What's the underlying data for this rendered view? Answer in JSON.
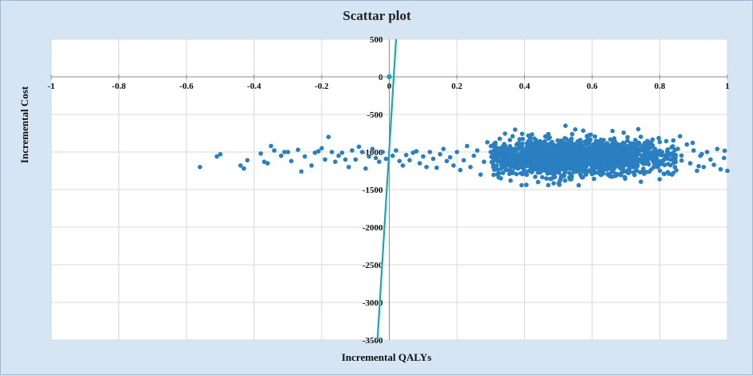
{
  "chart_data": {
    "type": "scatter",
    "title": "Scattar plot",
    "xlabel": "Incremental QALYs",
    "ylabel": "Incremental Cost",
    "xlim": [
      -1,
      1
    ],
    "ylim": [
      -3500,
      500
    ],
    "x_ticks": [
      "-1",
      "-0.8",
      "-0.6",
      "-0.4",
      "-0.2",
      "0",
      "0.2",
      "0.4",
      "0.6",
      "0.8",
      "1"
    ],
    "y_ticks": [
      "500",
      "0",
      "-500",
      "-1000",
      "-1500",
      "-2000",
      "-2500",
      "-3000",
      "-3500"
    ],
    "grid": true,
    "legend": "none",
    "colors": {
      "points": "#2a7fc1",
      "threshold_line": "#1aa7b2",
      "background": "#d6e5f3",
      "plot_area": "#ffffff"
    },
    "series": [
      {
        "type": "scatter",
        "points": [
          [
            -0.56,
            -1200
          ],
          [
            -0.51,
            -1060
          ],
          [
            -0.5,
            -1030
          ],
          [
            -0.44,
            -1180
          ],
          [
            -0.43,
            -1220
          ],
          [
            -0.42,
            -1110
          ],
          [
            -0.38,
            -1020
          ],
          [
            -0.37,
            -1130
          ],
          [
            -0.36,
            -1150
          ],
          [
            -0.35,
            -920
          ],
          [
            -0.34,
            -980
          ],
          [
            -0.32,
            -1050
          ],
          [
            -0.31,
            -1000
          ],
          [
            -0.3,
            -1000
          ],
          [
            -0.29,
            -1120
          ],
          [
            -0.27,
            -970
          ],
          [
            -0.26,
            -1260
          ],
          [
            -0.25,
            -1060
          ],
          [
            -0.23,
            -1180
          ],
          [
            -0.22,
            -1010
          ],
          [
            -0.21,
            -990
          ],
          [
            -0.2,
            -950
          ],
          [
            -0.19,
            -1100
          ],
          [
            -0.18,
            -800
          ],
          [
            -0.17,
            -1000
          ],
          [
            -0.16,
            -1130
          ],
          [
            -0.15,
            -1050
          ],
          [
            -0.14,
            -1010
          ],
          [
            -0.13,
            -1100
          ],
          [
            -0.12,
            -1200
          ],
          [
            -0.11,
            -980
          ],
          [
            -0.1,
            -1100
          ],
          [
            -0.09,
            -930
          ],
          [
            -0.08,
            -1000
          ],
          [
            -0.07,
            -1220
          ],
          [
            -0.06,
            -1060
          ],
          [
            -0.05,
            -960
          ],
          [
            -0.04,
            -1080
          ],
          [
            -0.03,
            -1130
          ],
          [
            -0.02,
            -1000
          ],
          [
            -0.01,
            -1090
          ],
          [
            0.01,
            -1050
          ],
          [
            0.02,
            -980
          ],
          [
            0.03,
            -1120
          ],
          [
            0.04,
            -1180
          ],
          [
            0.05,
            -1040
          ],
          [
            0.06,
            -1110
          ],
          [
            0.07,
            -1010
          ],
          [
            0.08,
            -990
          ],
          [
            0.09,
            -1150
          ],
          [
            0.1,
            -1060
          ],
          [
            0.11,
            -1200
          ],
          [
            0.12,
            -1000
          ],
          [
            0.13,
            -1090
          ],
          [
            0.14,
            -1210
          ],
          [
            0.15,
            -1030
          ],
          [
            0.16,
            -960
          ],
          [
            0.17,
            -1120
          ],
          [
            0.18,
            -1070
          ],
          [
            0.19,
            -1180
          ],
          [
            0.2,
            -1000
          ],
          [
            0.21,
            -1240
          ],
          [
            0.22,
            -1110
          ],
          [
            0.23,
            -920
          ],
          [
            0.24,
            -1200
          ],
          [
            0.25,
            -1050
          ],
          [
            0.26,
            -980
          ],
          [
            0.27,
            -1300
          ],
          [
            0.28,
            -1130
          ],
          [
            0.29,
            -870
          ],
          [
            0.3,
            -1000
          ],
          [
            0.31,
            -1200
          ],
          [
            0.32,
            -1100
          ],
          [
            0.33,
            -1350
          ],
          [
            0.34,
            -920
          ],
          [
            0.88,
            -900
          ],
          [
            0.89,
            -1150
          ],
          [
            0.9,
            -980
          ],
          [
            0.91,
            -1250
          ],
          [
            0.92,
            -1050
          ],
          [
            0.93,
            -1200
          ],
          [
            0.94,
            -1000
          ],
          [
            0.95,
            -1100
          ],
          [
            0.96,
            -1170
          ],
          [
            0.97,
            -960
          ],
          [
            0.98,
            -1230
          ],
          [
            0.99,
            -1080
          ],
          [
            1.0,
            -1250
          ],
          [
            0.86,
            -790
          ],
          [
            0.84,
            -1280
          ],
          [
            0.55,
            -700
          ],
          [
            0.66,
            -720
          ],
          [
            0.47,
            -1440
          ],
          [
            0.44,
            -1400
          ],
          [
            0.52,
            -1380
          ]
        ],
        "cluster": {
          "x_mean": 0.55,
          "x_sd": 0.14,
          "y_mean": -1070,
          "y_sd": 110,
          "n": 2000
        }
      },
      {
        "type": "line",
        "points": [
          [
            -0.035,
            -3500
          ],
          [
            0.02,
            500
          ]
        ]
      },
      {
        "type": "marker",
        "points": [
          [
            0,
            0
          ]
        ]
      }
    ]
  }
}
